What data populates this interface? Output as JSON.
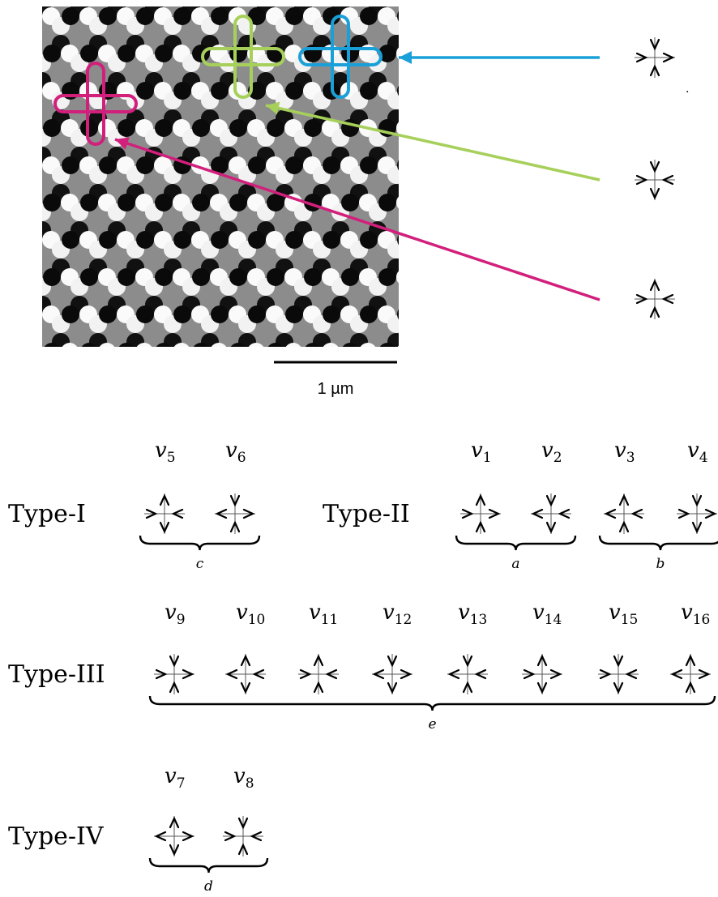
{
  "image": {
    "scale_label": "1 µm",
    "highlights": [
      {
        "name": "magenta",
        "color": "#d21f7c"
      },
      {
        "name": "green",
        "color": "#a6d05a"
      },
      {
        "name": "blue",
        "color": "#1aa0d9"
      }
    ]
  },
  "callouts": [
    {
      "color": "#1aa0d9",
      "arrows": {
        "up": "in",
        "down": "in",
        "left": "in",
        "right": "out"
      }
    },
    {
      "color": "#a6d05a",
      "arrows": {
        "up": "in",
        "down": "out",
        "left": "in",
        "right": "in"
      }
    },
    {
      "color": "#d21f7c",
      "arrows": {
        "up": "out",
        "down": "in",
        "left": "in",
        "right": "in"
      }
    }
  ],
  "types": [
    {
      "label": "Type-I",
      "vertices": [
        {
          "label": "v",
          "sub": "5",
          "arrows": {
            "up": "out",
            "down": "out",
            "left": "in",
            "right": "in"
          }
        },
        {
          "label": "v",
          "sub": "6",
          "arrows": {
            "up": "in",
            "down": "in",
            "left": "out",
            "right": "out"
          }
        }
      ],
      "groups": [
        {
          "letter": "c",
          "from": 0,
          "to": 1
        }
      ]
    },
    {
      "label": "Type-II",
      "vertices": [
        {
          "label": "v",
          "sub": "1",
          "arrows": {
            "up": "out",
            "down": "in",
            "left": "in",
            "right": "out"
          }
        },
        {
          "label": "v",
          "sub": "2",
          "arrows": {
            "up": "in",
            "down": "out",
            "left": "out",
            "right": "in"
          }
        },
        {
          "label": "v",
          "sub": "3",
          "arrows": {
            "up": "out",
            "down": "in",
            "left": "out",
            "right": "in"
          }
        },
        {
          "label": "v",
          "sub": "4",
          "arrows": {
            "up": "in",
            "down": "out",
            "left": "in",
            "right": "out"
          }
        }
      ],
      "groups": [
        {
          "letter": "a",
          "from": 0,
          "to": 1
        },
        {
          "letter": "b",
          "from": 2,
          "to": 3
        }
      ]
    },
    {
      "label": "Type-III",
      "vertices": [
        {
          "label": "v",
          "sub": "9",
          "arrows": {
            "up": "in",
            "down": "in",
            "left": "in",
            "right": "out"
          }
        },
        {
          "label": "v",
          "sub": "10",
          "arrows": {
            "up": "out",
            "down": "out",
            "left": "out",
            "right": "in"
          }
        },
        {
          "label": "v",
          "sub": "11",
          "arrows": {
            "up": "out",
            "down": "in",
            "left": "in",
            "right": "in"
          }
        },
        {
          "label": "v",
          "sub": "12",
          "arrows": {
            "up": "in",
            "down": "out",
            "left": "out",
            "right": "out"
          }
        },
        {
          "label": "v",
          "sub": "13",
          "arrows": {
            "up": "in",
            "down": "in",
            "left": "out",
            "right": "in"
          }
        },
        {
          "label": "v",
          "sub": "14",
          "arrows": {
            "up": "out",
            "down": "out",
            "left": "in",
            "right": "out"
          }
        },
        {
          "label": "v",
          "sub": "15",
          "arrows": {
            "up": "in",
            "down": "out",
            "left": "in",
            "right": "in"
          }
        },
        {
          "label": "v",
          "sub": "16",
          "arrows": {
            "up": "out",
            "down": "in",
            "left": "out",
            "right": "out"
          }
        }
      ],
      "groups": [
        {
          "letter": "e",
          "from": 0,
          "to": 7
        }
      ]
    },
    {
      "label": "Type-IV",
      "vertices": [
        {
          "label": "v",
          "sub": "7",
          "arrows": {
            "up": "out",
            "down": "out",
            "left": "out",
            "right": "out"
          }
        },
        {
          "label": "v",
          "sub": "8",
          "arrows": {
            "up": "in",
            "down": "in",
            "left": "in",
            "right": "in"
          }
        }
      ],
      "groups": [
        {
          "letter": "d",
          "from": 0,
          "to": 1
        }
      ]
    }
  ]
}
